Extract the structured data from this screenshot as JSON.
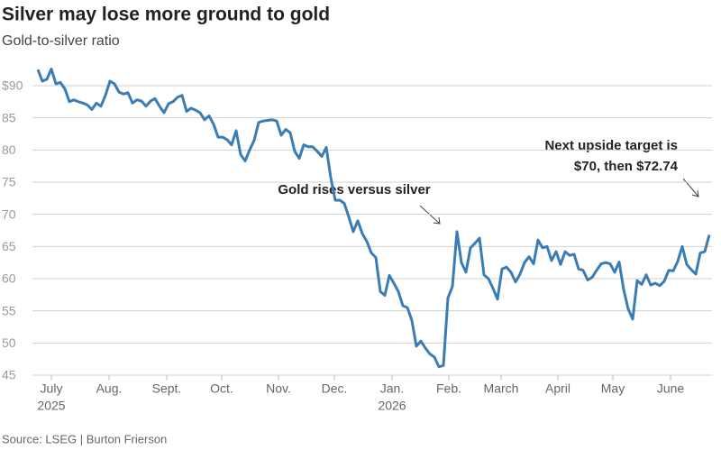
{
  "chart_data": {
    "type": "line",
    "title": "Silver may lose more ground to gold",
    "subtitle": "Gold-to-silver ratio",
    "source": "Source: LSEG | Burton Frierson",
    "annotations": [
      {
        "lines": [
          "Gold rises versus silver"
        ]
      },
      {
        "lines": [
          "Next upside target is",
          "$70, then $72.74"
        ]
      }
    ],
    "series": [
      {
        "name": "Gold-to-silver ratio",
        "color": "#3a7db5",
        "values": [
          92.5,
          90.7,
          91,
          92.6,
          90.3,
          90.5,
          89.5,
          87.5,
          87.8,
          87.5,
          87.3,
          87,
          86.3,
          87.3,
          86.8,
          88.5,
          90.7,
          90.3,
          89,
          88.7,
          88.9,
          87.3,
          87.8,
          87.6,
          86.8,
          87.6,
          88,
          86.8,
          85.8,
          87.2,
          87.5,
          88.2,
          88.5,
          86,
          86.5,
          86.2,
          85.8,
          84.7,
          85.3,
          84,
          82,
          82,
          81.6,
          80.8,
          83,
          79.3,
          78.3,
          80,
          81.5,
          84.3,
          84.5,
          84.6,
          84.7,
          84.5,
          82.3,
          83.2,
          82.7,
          79.8,
          78.7,
          80.8,
          80.5,
          80.5,
          79.8,
          79,
          80.4,
          75.7,
          72.2,
          72.2,
          71.7,
          69.6,
          67.3,
          69,
          67,
          65.8,
          64,
          63.3,
          58,
          57.4,
          60.5,
          59.3,
          58,
          55.8,
          55.5,
          53.5,
          49.5,
          50.3,
          49.2,
          48.3,
          47.8,
          46.3,
          46.5,
          57,
          58.8,
          67.3,
          62.5,
          61,
          64.8,
          65.5,
          66.3,
          60.6,
          60,
          58.5,
          56.8,
          61.5,
          61.8,
          61,
          59.5,
          60.7,
          62.5,
          63.4,
          62.3,
          66,
          64.8,
          65,
          62.8,
          64.2,
          62.2,
          64.2,
          63.6,
          63.8,
          61.5,
          61.3,
          59.8,
          60.2,
          61.3,
          62.3,
          62.5,
          62.3,
          61,
          62.6,
          58.3,
          55.3,
          53.7,
          59.7,
          59.1,
          60.6,
          59,
          59.3,
          58.9,
          59.6,
          61.3,
          61.2,
          62.7,
          65,
          62.2,
          61.4,
          60.7,
          64,
          64.2,
          66.8
        ]
      }
    ],
    "xlim": [
      0,
      149
    ],
    "xticks": [
      {
        "value": 3,
        "label": "July",
        "year": "2025"
      },
      {
        "value": 15.8,
        "label": "Aug."
      },
      {
        "value": 28.6,
        "label": "Sept."
      },
      {
        "value": 40.8,
        "label": "Oct."
      },
      {
        "value": 53.4,
        "label": "Nov."
      },
      {
        "value": 65.8,
        "label": "Dec."
      },
      {
        "value": 78.6,
        "label": "Jan.",
        "year": "2026"
      },
      {
        "value": 91.2,
        "label": "Feb."
      },
      {
        "value": 102.8,
        "label": "March"
      },
      {
        "value": 115.4,
        "label": "April"
      },
      {
        "value": 127.6,
        "label": "May"
      },
      {
        "value": 140.4,
        "label": "June"
      }
    ],
    "ylim": [
      45,
      93
    ],
    "yticks": [
      45,
      50,
      55,
      60,
      65,
      70,
      75,
      80,
      85,
      {
        "value": 90,
        "label": "$90"
      }
    ],
    "grid": true
  }
}
